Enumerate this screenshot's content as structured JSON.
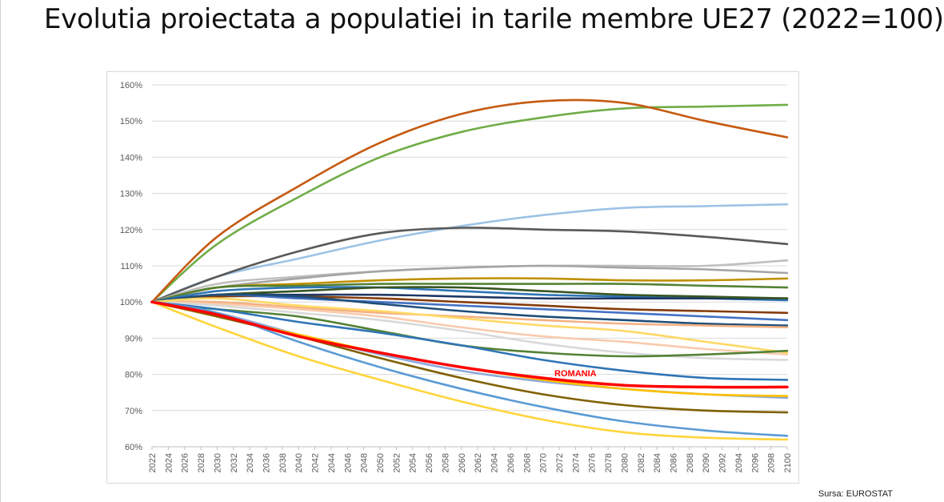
{
  "title": "Evolutia proiectata a populatiei in tarile membre UE27 (2022=100)",
  "source": "Sursa: EUROSTAT",
  "chart_data": {
    "type": "line",
    "title": "",
    "xlabel": "",
    "ylabel": "",
    "ylim": [
      60,
      160
    ],
    "y_ticks": [
      "60%",
      "70%",
      "80%",
      "90%",
      "100%",
      "110%",
      "120%",
      "130%",
      "140%",
      "150%",
      "160%"
    ],
    "x_ticks": [
      "2022",
      "2024",
      "2026",
      "2028",
      "2030",
      "2032",
      "2034",
      "2036",
      "2038",
      "2040",
      "2042",
      "2044",
      "2046",
      "2048",
      "2050",
      "2052",
      "2054",
      "2056",
      "2058",
      "2060",
      "2062",
      "2064",
      "2066",
      "2068",
      "2070",
      "2072",
      "2074",
      "2076",
      "2078",
      "2080",
      "2082",
      "2084",
      "2086",
      "2088",
      "2090",
      "2092",
      "2094",
      "2096",
      "2098",
      "2100"
    ],
    "grid": true,
    "legend": "none",
    "x": [
      2022,
      2030,
      2040,
      2050,
      2060,
      2070,
      2080,
      2090,
      2100
    ],
    "annotation": {
      "text": "ROMANIA",
      "x": 2074,
      "y": 79.5,
      "color": "#ff0000"
    },
    "series": [
      {
        "color": "#70ad47",
        "values": [
          100,
          116,
          129,
          140,
          147,
          151,
          153.5,
          154,
          154.5
        ]
      },
      {
        "color": "#c55a11",
        "values": [
          100,
          118,
          132,
          144,
          152,
          155.5,
          155,
          150,
          145.5
        ]
      },
      {
        "color": "#9dc3e6",
        "values": [
          100,
          107,
          112,
          117,
          121,
          124,
          126,
          126.5,
          127
        ]
      },
      {
        "color": "#595959",
        "values": [
          100,
          107,
          114,
          119,
          120.5,
          120,
          119.5,
          118,
          116
        ]
      },
      {
        "color": "#bfbfbf",
        "values": [
          100,
          105,
          107,
          108.5,
          109.5,
          110,
          110,
          110,
          111.5
        ]
      },
      {
        "color": "#a5a5a5",
        "values": [
          100,
          104,
          106.5,
          108.5,
          109.5,
          110,
          109.5,
          109,
          108
        ]
      },
      {
        "color": "#bf9000",
        "values": [
          100,
          104,
          105,
          106,
          106.5,
          106.5,
          106,
          106,
          106.5
        ]
      },
      {
        "color": "#548235",
        "values": [
          100,
          104,
          104.5,
          105,
          105,
          105,
          105,
          104.5,
          104
        ]
      },
      {
        "color": "#2e75b6",
        "values": [
          100,
          103,
          104,
          104,
          103,
          102,
          101.5,
          101,
          100.5
        ]
      },
      {
        "color": "#203864",
        "values": [
          100,
          102,
          102,
          102,
          101.5,
          101,
          101,
          101,
          101
        ]
      },
      {
        "color": "#375623",
        "values": [
          100,
          102,
          103,
          104,
          104,
          103,
          102,
          101.5,
          101
        ]
      },
      {
        "color": "#843c0c",
        "values": [
          100,
          101.5,
          101.5,
          101,
          100,
          99,
          98,
          97.5,
          97
        ]
      },
      {
        "color": "#4472c4",
        "values": [
          100,
          102,
          101,
          100,
          99,
          98,
          97,
          96,
          95
        ]
      },
      {
        "color": "#1f4e79",
        "values": [
          100,
          102,
          101.5,
          99.5,
          97.5,
          96,
          95,
          94,
          93.5
        ]
      },
      {
        "color": "#f4b183",
        "values": [
          100,
          100,
          98.5,
          97,
          96,
          95,
          94,
          93.5,
          93
        ]
      },
      {
        "color": "#f8cbad",
        "values": [
          100,
          99.5,
          98,
          96,
          93,
          90.5,
          89,
          87,
          85.5
        ]
      },
      {
        "color": "#d9d9d9",
        "values": [
          100,
          99,
          97,
          95,
          92,
          88.5,
          86,
          84.5,
          84
        ]
      },
      {
        "color": "#ffd966",
        "values": [
          100,
          101,
          99,
          97.5,
          95.5,
          93.5,
          92,
          89,
          86
        ]
      },
      {
        "color": "#538135",
        "values": [
          100,
          98,
          96,
          92,
          88,
          86,
          85,
          85.5,
          86.5
        ]
      },
      {
        "color": "#2f75b5",
        "values": [
          100,
          98,
          94.5,
          91.5,
          88,
          84,
          81,
          79,
          78.5
        ]
      },
      {
        "color": "#8ea9db",
        "values": [
          100,
          97,
          91,
          85.5,
          81,
          78,
          76,
          74.5,
          73.5
        ]
      },
      {
        "color": "#ffc000",
        "values": [
          100,
          96,
          91,
          86,
          82,
          78.5,
          76,
          74.5,
          74
        ]
      },
      {
        "color": "#806000",
        "values": [
          100,
          96,
          90.5,
          84.5,
          79,
          74.5,
          71.5,
          70,
          69.5
        ]
      },
      {
        "color": "#5b9bd5",
        "values": [
          100,
          97,
          89,
          82,
          76,
          71,
          67,
          64.5,
          63
        ]
      },
      {
        "color": "#ffd43b",
        "values": [
          100,
          93,
          85,
          78.5,
          72.5,
          67.5,
          64,
          62.5,
          62
        ]
      },
      {
        "color": "#ff0000",
        "values": [
          100,
          96.5,
          90.5,
          86,
          82,
          79,
          77,
          76.5,
          76.5
        ],
        "width": 3.5
      }
    ]
  }
}
